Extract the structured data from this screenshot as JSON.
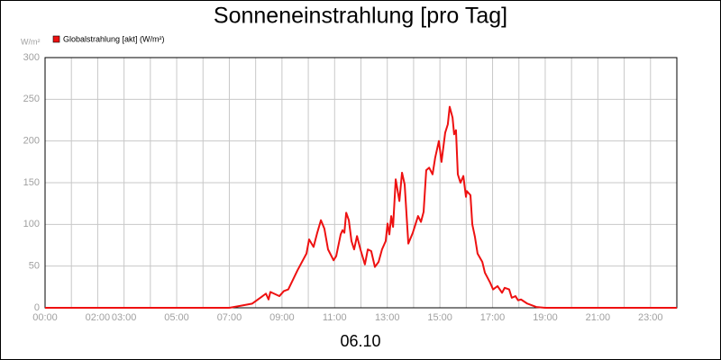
{
  "chart_data": {
    "type": "line",
    "title": "Sonneneinstrahlung [pro Tag]",
    "y_unit": "W/m²",
    "x_label": "06.10",
    "x": [
      0,
      7.0,
      7.36,
      7.87,
      8.22,
      8.39,
      8.49,
      8.56,
      8.9,
      9.07,
      9.24,
      9.59,
      9.93,
      10.03,
      10.2,
      10.34,
      10.48,
      10.61,
      10.75,
      10.96,
      11.06,
      11.23,
      11.3,
      11.37,
      11.44,
      11.54,
      11.64,
      11.74,
      11.85,
      11.98,
      12.15,
      12.26,
      12.39,
      12.53,
      12.67,
      12.8,
      12.94,
      13.01,
      13.08,
      13.15,
      13.22,
      13.32,
      13.46,
      13.56,
      13.66,
      13.8,
      13.97,
      14.17,
      14.28,
      14.38,
      14.48,
      14.59,
      14.72,
      14.82,
      14.96,
      15.06,
      15.2,
      15.3,
      15.37,
      15.48,
      15.54,
      15.61,
      15.68,
      15.78,
      15.89,
      15.99,
      16.02,
      16.16,
      16.23,
      16.33,
      16.43,
      16.61,
      16.71,
      16.91,
      17.02,
      17.19,
      17.36,
      17.46,
      17.63,
      17.73,
      17.87,
      17.97,
      18.08,
      18.32,
      18.66,
      19.0,
      24
    ],
    "series": [
      {
        "name": "Globalstrahlung [akt] (W/m²)",
        "color": "#ee1111",
        "values": [
          0,
          0,
          2,
          5,
          13,
          17,
          10,
          19,
          14,
          20,
          22,
          45,
          65,
          82,
          73,
          90,
          105,
          95,
          70,
          57,
          62,
          88,
          93,
          90,
          114,
          105,
          80,
          70,
          86,
          70,
          52,
          70,
          68,
          49,
          55,
          70,
          80,
          101,
          88,
          110,
          97,
          154,
          128,
          162,
          148,
          77,
          90,
          110,
          103,
          115,
          165,
          168,
          160,
          180,
          200,
          175,
          210,
          220,
          241,
          228,
          208,
          213,
          160,
          150,
          158,
          133,
          140,
          135,
          100,
          85,
          65,
          55,
          42,
          30,
          22,
          26,
          18,
          24,
          22,
          12,
          14,
          9,
          10,
          5,
          1,
          0,
          0
        ]
      }
    ],
    "xlim": [
      0,
      24
    ],
    "ylim": [
      0,
      300
    ],
    "yticks": [
      0,
      50,
      100,
      150,
      200,
      250,
      300
    ],
    "xticks": [
      {
        "value": 0,
        "label": "00:00"
      },
      {
        "value": 1,
        "label": null
      },
      {
        "value": 2,
        "label": "02:00"
      },
      {
        "value": 3,
        "label": "03:00"
      },
      {
        "value": 4,
        "label": null
      },
      {
        "value": 5,
        "label": "05:00"
      },
      {
        "value": 6,
        "label": null
      },
      {
        "value": 7,
        "label": "07:00"
      },
      {
        "value": 8,
        "label": null
      },
      {
        "value": 9,
        "label": "09:00"
      },
      {
        "value": 10,
        "label": null
      },
      {
        "value": 11,
        "label": "11:00"
      },
      {
        "value": 12,
        "label": null
      },
      {
        "value": 13,
        "label": "13:00"
      },
      {
        "value": 14,
        "label": null
      },
      {
        "value": 15,
        "label": "15:00"
      },
      {
        "value": 16,
        "label": null
      },
      {
        "value": 17,
        "label": "17:00"
      },
      {
        "value": 18,
        "label": null
      },
      {
        "value": 19,
        "label": "19:00"
      },
      {
        "value": 20,
        "label": null
      },
      {
        "value": 21,
        "label": "21:00"
      },
      {
        "value": 22,
        "label": null
      },
      {
        "value": 23,
        "label": "23:00"
      },
      {
        "value": 24,
        "label": null
      }
    ],
    "grid": true
  }
}
